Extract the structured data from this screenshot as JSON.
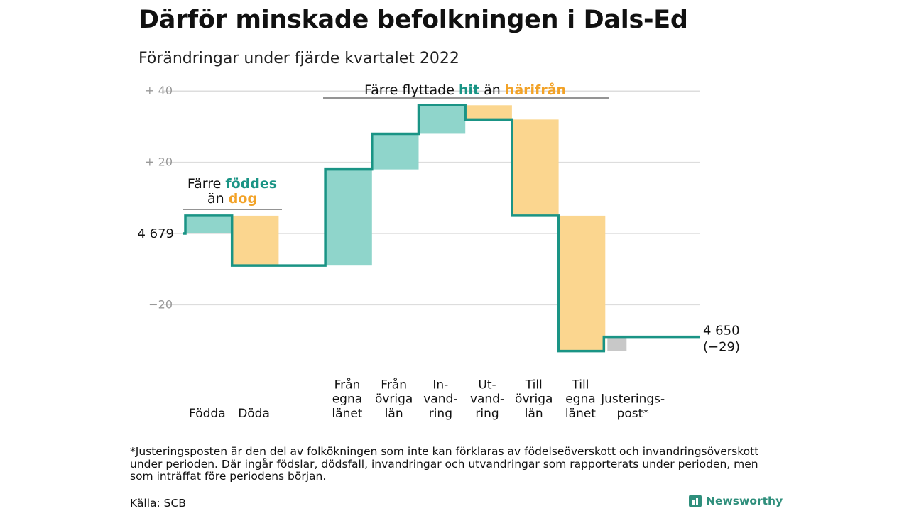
{
  "title": "Därför minskade befolkningen i Dals-Ed",
  "subtitle": "Förändringar under fjärde kvartalet 2022",
  "footnote": "*Justeringsposten är den del av folkökningen som inte kan förklaras av födelseöverskott och invandringsöverskott under perioden. Där ingår födslar, dödsfall, invandringar och utvandringar som rapporterats under perioden, men som inträffat före periodens början.",
  "source": "Källa: SCB",
  "brand": "Newsworthy",
  "colors": {
    "increase": "#8fd5cb",
    "decrease": "#fbd68f",
    "adjustment": "#c8c8c8",
    "line": "#1a9485",
    "teal_text": "#1a9485",
    "orange_text": "#f2a227",
    "grid": "#dddddd",
    "tick": "#999999"
  },
  "chart_data": {
    "type": "waterfall",
    "start_value": 4679,
    "end_value": 4650,
    "start_label": "4 679",
    "end_label": "4 650",
    "end_change_label": "(−29)",
    "ylim": [
      -34,
      41
    ],
    "yticks": [
      {
        "value": 40,
        "label": "+ 40"
      },
      {
        "value": 20,
        "label": "+ 20"
      },
      {
        "value": 0,
        "label": ""
      },
      {
        "value": -20,
        "label": "−20"
      }
    ],
    "grid": true,
    "steps": [
      {
        "key": "fodda",
        "label_lines": [
          "Födda"
        ],
        "change": 5,
        "kind": "increase"
      },
      {
        "key": "doda",
        "label_lines": [
          "Döda"
        ],
        "change": -14,
        "kind": "decrease"
      },
      {
        "key": "gap",
        "label_lines": [],
        "change": 0,
        "kind": "none"
      },
      {
        "key": "fran_egna",
        "label_lines": [
          "Från",
          "egna",
          "länet"
        ],
        "change": 27,
        "kind": "increase"
      },
      {
        "key": "fran_ovriga",
        "label_lines": [
          "Från",
          "övriga",
          "län"
        ],
        "change": 10,
        "kind": "increase"
      },
      {
        "key": "invandring",
        "label_lines": [
          "In-",
          "vand-",
          "ring"
        ],
        "change": 8,
        "kind": "increase"
      },
      {
        "key": "utvandring",
        "label_lines": [
          "Ut-",
          "vand-",
          "ring"
        ],
        "change": -4,
        "kind": "decrease"
      },
      {
        "key": "till_ovriga",
        "label_lines": [
          "Till",
          "övriga",
          "län"
        ],
        "change": -27,
        "kind": "decrease"
      },
      {
        "key": "till_egna",
        "label_lines": [
          "Till",
          "egna",
          "länet"
        ],
        "change": -38,
        "kind": "decrease"
      },
      {
        "key": "justering",
        "label_lines": [
          "Justerings-",
          "post*"
        ],
        "change": 4,
        "kind": "adjustment"
      }
    ],
    "annotations": [
      {
        "key": "births",
        "lines": [
          [
            {
              "text": "Färre ",
              "style": "plain"
            },
            {
              "text": "föddes",
              "style": "teal"
            }
          ],
          [
            {
              "text": "än ",
              "style": "plain"
            },
            {
              "text": "dog",
              "style": "orange"
            }
          ]
        ]
      },
      {
        "key": "moves",
        "lines": [
          [
            {
              "text": "Färre flyttade ",
              "style": "plain"
            },
            {
              "text": "hit",
              "style": "teal"
            },
            {
              "text": " än ",
              "style": "plain"
            },
            {
              "text": "härifrån",
              "style": "orange"
            }
          ]
        ]
      }
    ]
  }
}
